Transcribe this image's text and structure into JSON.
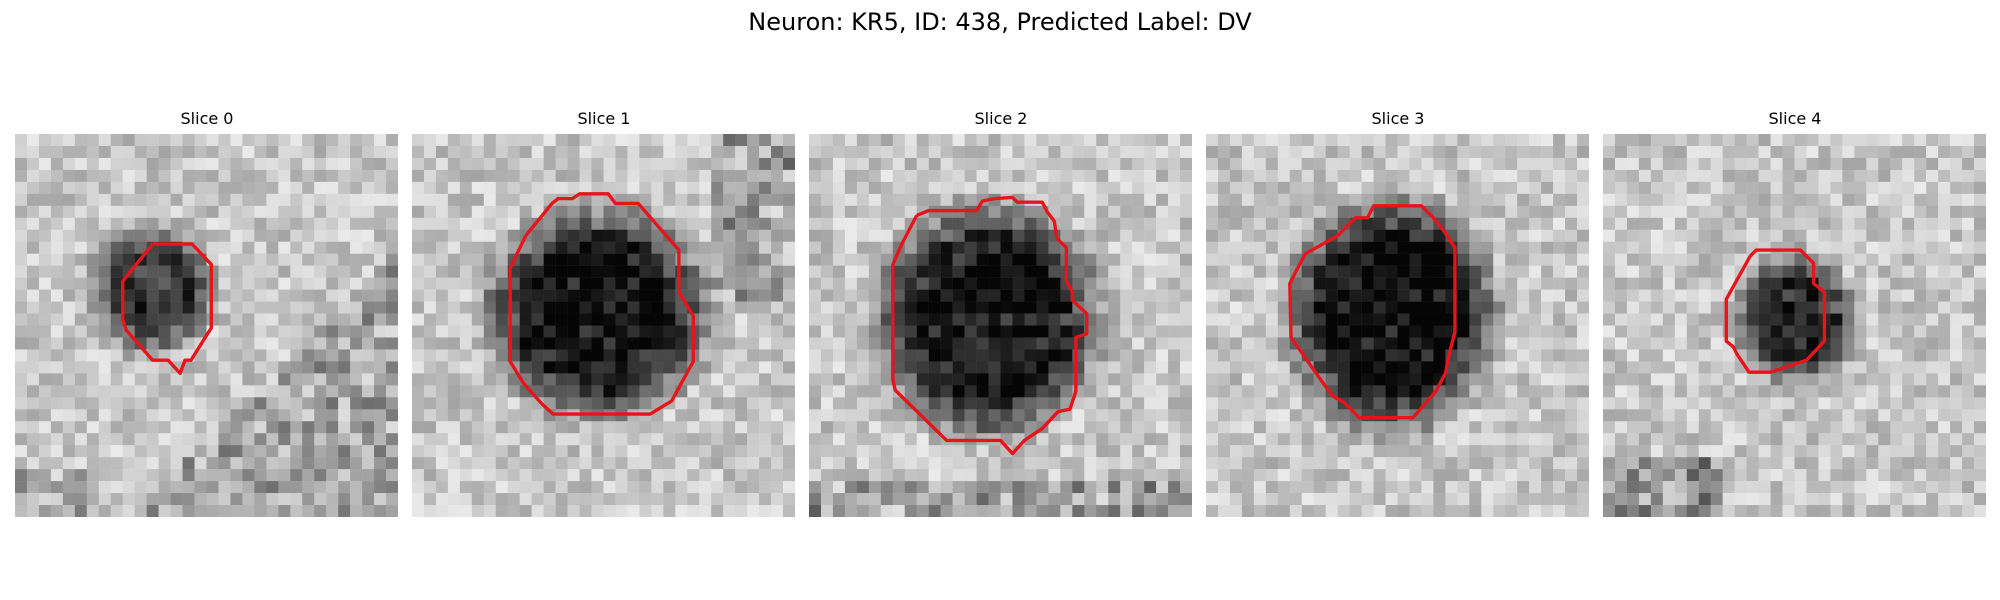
{
  "figure": {
    "title": "Neuron: KR5, ID: 438, Predicted Label: DV",
    "outline_color": "#e8141b"
  },
  "panels": [
    {
      "title": "Slice 0"
    },
    {
      "title": "Slice 1"
    },
    {
      "title": "Slice 2"
    },
    {
      "title": "Slice 3"
    },
    {
      "title": "Slice 4"
    }
  ]
}
